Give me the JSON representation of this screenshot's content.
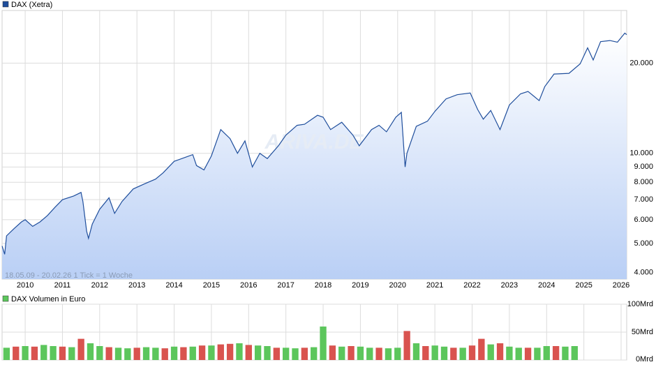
{
  "chart_data": [
    {
      "type": "line",
      "legend": "DAX (Xetra)",
      "annotation": "18.05.09 - 20.02.26   1 Tick = 1 Woche",
      "watermark": "ARIVA.DE",
      "log_scale": true,
      "grid": true,
      "fill": true,
      "xlim": [
        2009.38,
        2026.15
      ],
      "xticks": [
        2010,
        2011,
        2012,
        2013,
        2014,
        2015,
        2016,
        2017,
        2018,
        2019,
        2020,
        2021,
        2022,
        2023,
        2024,
        2025,
        2026
      ],
      "ylim": [
        3800,
        30000
      ],
      "yticks": [
        {
          "value": 4000,
          "label": "4.000"
        },
        {
          "value": 5000,
          "label": "5.000"
        },
        {
          "value": 6000,
          "label": "6.000"
        },
        {
          "value": 7000,
          "label": "7.000"
        },
        {
          "value": 8000,
          "label": "8.000"
        },
        {
          "value": 9000,
          "label": "9.000"
        },
        {
          "value": 10000,
          "label": "10.000"
        },
        {
          "value": 20000,
          "label": "20.000"
        }
      ],
      "x": [
        2009.38,
        2009.45,
        2009.5,
        2009.7,
        2009.9,
        2010.0,
        2010.2,
        2010.4,
        2010.6,
        2010.8,
        2011.0,
        2011.3,
        2011.5,
        2011.55,
        2011.65,
        2011.7,
        2011.8,
        2012.0,
        2012.25,
        2012.4,
        2012.6,
        2012.9,
        2013.2,
        2013.5,
        2013.7,
        2014.0,
        2014.3,
        2014.5,
        2014.6,
        2014.8,
        2015.0,
        2015.25,
        2015.5,
        2015.7,
        2015.9,
        2016.1,
        2016.3,
        2016.5,
        2016.8,
        2017.0,
        2017.3,
        2017.5,
        2017.85,
        2018.0,
        2018.2,
        2018.5,
        2018.8,
        2018.97,
        2019.3,
        2019.5,
        2019.7,
        2019.95,
        2020.1,
        2020.2,
        2020.25,
        2020.5,
        2020.8,
        2021.0,
        2021.3,
        2021.6,
        2021.95,
        2022.15,
        2022.3,
        2022.5,
        2022.75,
        2023.0,
        2023.3,
        2023.5,
        2023.8,
        2023.95,
        2024.2,
        2024.6,
        2024.9,
        2025.1,
        2025.25,
        2025.45,
        2025.7,
        2025.9,
        2026.1,
        2026.15
      ],
      "series": [
        {
          "name": "DAX (Xetra)",
          "color": "#1f4e9c",
          "values": [
            4900,
            4600,
            5300,
            5600,
            5900,
            6000,
            5700,
            5900,
            6200,
            6600,
            7000,
            7200,
            7400,
            6900,
            5500,
            5200,
            5800,
            6500,
            7100,
            6300,
            6900,
            7600,
            7900,
            8200,
            8600,
            9400,
            9700,
            9900,
            9100,
            8800,
            9800,
            12000,
            11200,
            10000,
            11000,
            9000,
            10000,
            9600,
            10600,
            11500,
            12400,
            12500,
            13400,
            13200,
            12000,
            12700,
            11500,
            10600,
            12000,
            12400,
            11800,
            13200,
            13700,
            9000,
            10000,
            12300,
            12800,
            13800,
            15200,
            15700,
            15900,
            14000,
            13000,
            13900,
            12000,
            14500,
            15800,
            16100,
            15000,
            16700,
            18400,
            18500,
            19900,
            22500,
            20500,
            23600,
            23800,
            23500,
            25200,
            24900
          ]
        }
      ]
    },
    {
      "type": "bar",
      "legend": "DAX Volumen in Euro",
      "grid": true,
      "xlim": [
        2009.38,
        2026.15
      ],
      "xticks": [
        2010,
        2011,
        2012,
        2013,
        2014,
        2015,
        2016,
        2017,
        2018,
        2019,
        2020,
        2021,
        2022,
        2023,
        2024,
        2025,
        2026
      ],
      "ylim": [
        0,
        100
      ],
      "yticks": [
        {
          "value": 0,
          "label": "0Mrd"
        },
        {
          "value": 50,
          "label": "50Mrd"
        },
        {
          "value": 100,
          "label": "100Mrd"
        }
      ],
      "x": [
        2009.5,
        2009.75,
        2010,
        2010.25,
        2010.5,
        2010.75,
        2011,
        2011.25,
        2011.5,
        2011.75,
        2012,
        2012.25,
        2012.5,
        2012.75,
        2013,
        2013.25,
        2013.5,
        2013.75,
        2014,
        2014.25,
        2014.5,
        2014.75,
        2015,
        2015.25,
        2015.5,
        2015.75,
        2016,
        2016.25,
        2016.5,
        2016.75,
        2017,
        2017.25,
        2017.5,
        2017.75,
        2018,
        2018.25,
        2018.5,
        2018.75,
        2019,
        2019.25,
        2019.5,
        2019.75,
        2020,
        2020.25,
        2020.5,
        2020.75,
        2021,
        2021.25,
        2021.5,
        2021.75,
        2022,
        2022.25,
        2022.5,
        2022.75,
        2023,
        2023.25,
        2023.5,
        2023.75,
        2024,
        2024.25,
        2024.5,
        2024.75
      ],
      "series": [
        {
          "name": "DAX Volumen in Euro",
          "color": "#5cc65c",
          "values": [
            22,
            24,
            25,
            24,
            27,
            25,
            24,
            23,
            38,
            30,
            25,
            23,
            22,
            21,
            22,
            23,
            22,
            21,
            24,
            23,
            24,
            26,
            26,
            28,
            29,
            30,
            27,
            26,
            25,
            22,
            22,
            21,
            22,
            23,
            60,
            26,
            24,
            25,
            24,
            22,
            22,
            21,
            22,
            52,
            30,
            25,
            26,
            24,
            22,
            22,
            26,
            38,
            28,
            30,
            24,
            22,
            22,
            22,
            25,
            25,
            24,
            25
          ],
          "colors": [
            "#5cc65c",
            "#d9534f",
            "#5cc65c",
            "#d9534f",
            "#5cc65c",
            "#5cc65c",
            "#d9534f",
            "#5cc65c",
            "#d9534f",
            "#5cc65c",
            "#5cc65c",
            "#d9534f",
            "#5cc65c",
            "#5cc65c",
            "#d9534f",
            "#5cc65c",
            "#5cc65c",
            "#d9534f",
            "#5cc65c",
            "#d9534f",
            "#5cc65c",
            "#d9534f",
            "#5cc65c",
            "#d9534f",
            "#d9534f",
            "#5cc65c",
            "#d9534f",
            "#5cc65c",
            "#5cc65c",
            "#d9534f",
            "#5cc65c",
            "#5cc65c",
            "#d9534f",
            "#5cc65c",
            "#5cc65c",
            "#d9534f",
            "#5cc65c",
            "#d9534f",
            "#5cc65c",
            "#5cc65c",
            "#d9534f",
            "#5cc65c",
            "#5cc65c",
            "#d9534f",
            "#5cc65c",
            "#d9534f",
            "#5cc65c",
            "#5cc65c",
            "#d9534f",
            "#5cc65c",
            "#d9534f",
            "#d9534f",
            "#5cc65c",
            "#d9534f",
            "#5cc65c",
            "#5cc65c",
            "#d9534f",
            "#5cc65c",
            "#5cc65c",
            "#d9534f",
            "#5cc65c",
            "#5cc65c"
          ]
        }
      ]
    }
  ]
}
